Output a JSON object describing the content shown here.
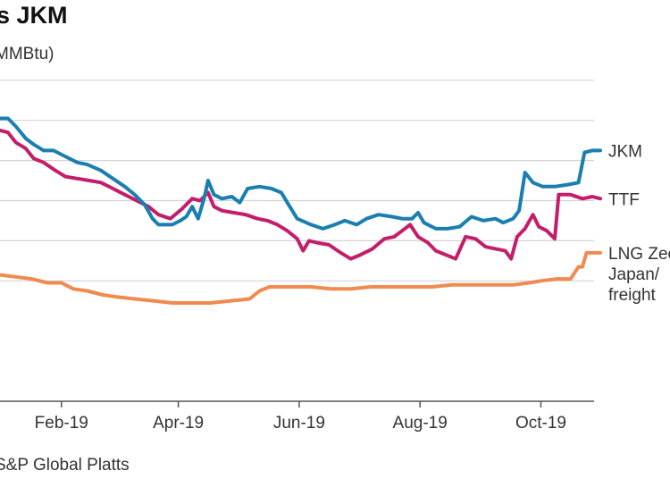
{
  "chart_data": {
    "type": "line",
    "title": "s JKM",
    "ylabel": "MMBtu)",
    "source": "S&P Global Platts",
    "x_start": "2019-01-01",
    "x_end": "2019-10-31",
    "x_ticks": [
      {
        "date": "2019-02-01",
        "label": "Feb-19"
      },
      {
        "date": "2019-04-01",
        "label": "Apr-19"
      },
      {
        "date": "2019-06-01",
        "label": "Jun-19"
      },
      {
        "date": "2019-08-01",
        "label": "Aug-19"
      },
      {
        "date": "2019-10-01",
        "label": "Oct-19"
      }
    ],
    "ylim": [
      0,
      10
    ],
    "grid_lines": [
      3,
      4,
      5,
      6,
      7,
      8
    ],
    "series": [
      {
        "name": "JKM",
        "legend": [
          "JKM"
        ],
        "color": "#1a7fb0",
        "points": [
          [
            "2019-01-01",
            7.05
          ],
          [
            "2019-01-05",
            7.05
          ],
          [
            "2019-01-09",
            6.85
          ],
          [
            "2019-01-14",
            6.55
          ],
          [
            "2019-01-18",
            6.4
          ],
          [
            "2019-01-23",
            6.25
          ],
          [
            "2019-01-28",
            6.25
          ],
          [
            "2019-02-03",
            6.1
          ],
          [
            "2019-02-09",
            5.95
          ],
          [
            "2019-02-14",
            5.9
          ],
          [
            "2019-02-21",
            5.75
          ],
          [
            "2019-02-27",
            5.55
          ],
          [
            "2019-03-05",
            5.35
          ],
          [
            "2019-03-10",
            5.15
          ],
          [
            "2019-03-15",
            4.9
          ],
          [
            "2019-03-19",
            4.55
          ],
          [
            "2019-03-22",
            4.4
          ],
          [
            "2019-03-29",
            4.4
          ],
          [
            "2019-04-02",
            4.5
          ],
          [
            "2019-04-05",
            4.6
          ],
          [
            "2019-04-08",
            4.85
          ],
          [
            "2019-04-11",
            4.55
          ],
          [
            "2019-04-14",
            5.05
          ],
          [
            "2019-04-16",
            5.5
          ],
          [
            "2019-04-19",
            5.15
          ],
          [
            "2019-04-23",
            5.05
          ],
          [
            "2019-04-28",
            5.1
          ],
          [
            "2019-05-02",
            4.95
          ],
          [
            "2019-05-06",
            5.3
          ],
          [
            "2019-05-12",
            5.35
          ],
          [
            "2019-05-18",
            5.3
          ],
          [
            "2019-05-23",
            5.2
          ],
          [
            "2019-05-26",
            4.95
          ],
          [
            "2019-05-31",
            4.55
          ],
          [
            "2019-06-07",
            4.4
          ],
          [
            "2019-06-13",
            4.3
          ],
          [
            "2019-06-19",
            4.4
          ],
          [
            "2019-06-24",
            4.5
          ],
          [
            "2019-06-30",
            4.4
          ],
          [
            "2019-07-05",
            4.55
          ],
          [
            "2019-07-11",
            4.65
          ],
          [
            "2019-07-18",
            4.6
          ],
          [
            "2019-07-23",
            4.55
          ],
          [
            "2019-07-28",
            4.55
          ],
          [
            "2019-07-31",
            4.7
          ],
          [
            "2019-08-03",
            4.45
          ],
          [
            "2019-08-09",
            4.3
          ],
          [
            "2019-08-15",
            4.3
          ],
          [
            "2019-08-21",
            4.35
          ],
          [
            "2019-08-27",
            4.6
          ],
          [
            "2019-09-02",
            4.5
          ],
          [
            "2019-09-08",
            4.55
          ],
          [
            "2019-09-12",
            4.45
          ],
          [
            "2019-09-17",
            4.55
          ],
          [
            "2019-09-20",
            4.75
          ],
          [
            "2019-09-23",
            5.7
          ],
          [
            "2019-09-27",
            5.45
          ],
          [
            "2019-10-02",
            5.35
          ],
          [
            "2019-10-08",
            5.35
          ],
          [
            "2019-10-15",
            5.4
          ],
          [
            "2019-10-20",
            5.45
          ],
          [
            "2019-10-23",
            6.2
          ],
          [
            "2019-10-27",
            6.25
          ],
          [
            "2019-10-31",
            6.25
          ]
        ]
      },
      {
        "name": "TTF",
        "legend": [
          "TTF"
        ],
        "color": "#c41e6a",
        "points": [
          [
            "2019-01-01",
            6.75
          ],
          [
            "2019-01-05",
            6.7
          ],
          [
            "2019-01-09",
            6.45
          ],
          [
            "2019-01-14",
            6.3
          ],
          [
            "2019-01-18",
            6.05
          ],
          [
            "2019-01-23",
            5.95
          ],
          [
            "2019-01-29",
            5.75
          ],
          [
            "2019-02-03",
            5.6
          ],
          [
            "2019-02-09",
            5.55
          ],
          [
            "2019-02-15",
            5.5
          ],
          [
            "2019-02-21",
            5.45
          ],
          [
            "2019-02-27",
            5.3
          ],
          [
            "2019-03-05",
            5.15
          ],
          [
            "2019-03-11",
            5.0
          ],
          [
            "2019-03-17",
            4.85
          ],
          [
            "2019-03-22",
            4.65
          ],
          [
            "2019-03-28",
            4.55
          ],
          [
            "2019-04-03",
            4.8
          ],
          [
            "2019-04-08",
            5.05
          ],
          [
            "2019-04-12",
            5.0
          ],
          [
            "2019-04-16",
            5.2
          ],
          [
            "2019-04-19",
            4.85
          ],
          [
            "2019-04-23",
            4.75
          ],
          [
            "2019-04-29",
            4.7
          ],
          [
            "2019-05-05",
            4.65
          ],
          [
            "2019-05-11",
            4.55
          ],
          [
            "2019-05-16",
            4.5
          ],
          [
            "2019-05-21",
            4.4
          ],
          [
            "2019-05-26",
            4.25
          ],
          [
            "2019-05-31",
            4.05
          ],
          [
            "2019-06-03",
            3.75
          ],
          [
            "2019-06-06",
            4.0
          ],
          [
            "2019-06-10",
            3.95
          ],
          [
            "2019-06-16",
            3.9
          ],
          [
            "2019-06-22",
            3.7
          ],
          [
            "2019-06-27",
            3.55
          ],
          [
            "2019-07-02",
            3.65
          ],
          [
            "2019-07-08",
            3.8
          ],
          [
            "2019-07-14",
            4.05
          ],
          [
            "2019-07-19",
            4.1
          ],
          [
            "2019-07-23",
            4.25
          ],
          [
            "2019-07-27",
            4.4
          ],
          [
            "2019-07-31",
            4.1
          ],
          [
            "2019-08-05",
            3.95
          ],
          [
            "2019-08-09",
            3.75
          ],
          [
            "2019-08-14",
            3.65
          ],
          [
            "2019-08-19",
            3.55
          ],
          [
            "2019-08-24",
            4.1
          ],
          [
            "2019-08-29",
            4.05
          ],
          [
            "2019-09-03",
            3.85
          ],
          [
            "2019-09-08",
            3.8
          ],
          [
            "2019-09-13",
            3.75
          ],
          [
            "2019-09-16",
            3.55
          ],
          [
            "2019-09-19",
            4.1
          ],
          [
            "2019-09-23",
            4.3
          ],
          [
            "2019-09-27",
            4.65
          ],
          [
            "2019-09-30",
            4.35
          ],
          [
            "2019-10-04",
            4.25
          ],
          [
            "2019-10-08",
            4.05
          ],
          [
            "2019-10-10",
            5.15
          ],
          [
            "2019-10-16",
            5.15
          ],
          [
            "2019-10-22",
            5.05
          ],
          [
            "2019-10-27",
            5.1
          ],
          [
            "2019-10-31",
            5.05
          ]
        ]
      },
      {
        "name": "LNG freight",
        "legend": [
          "LNG Zee",
          "Japan/",
          "freight"
        ],
        "color": "#f08a50",
        "points": [
          [
            "2019-01-01",
            3.15
          ],
          [
            "2019-01-09",
            3.1
          ],
          [
            "2019-01-17",
            3.05
          ],
          [
            "2019-01-25",
            2.95
          ],
          [
            "2019-02-01",
            2.95
          ],
          [
            "2019-02-07",
            2.8
          ],
          [
            "2019-02-14",
            2.75
          ],
          [
            "2019-02-22",
            2.65
          ],
          [
            "2019-03-01",
            2.6
          ],
          [
            "2019-03-10",
            2.55
          ],
          [
            "2019-03-20",
            2.5
          ],
          [
            "2019-03-29",
            2.45
          ],
          [
            "2019-04-07",
            2.45
          ],
          [
            "2019-04-17",
            2.45
          ],
          [
            "2019-04-27",
            2.5
          ],
          [
            "2019-05-07",
            2.55
          ],
          [
            "2019-05-12",
            2.75
          ],
          [
            "2019-05-17",
            2.85
          ],
          [
            "2019-05-27",
            2.85
          ],
          [
            "2019-06-07",
            2.85
          ],
          [
            "2019-06-17",
            2.8
          ],
          [
            "2019-06-27",
            2.8
          ],
          [
            "2019-07-07",
            2.85
          ],
          [
            "2019-07-17",
            2.85
          ],
          [
            "2019-07-27",
            2.85
          ],
          [
            "2019-08-07",
            2.85
          ],
          [
            "2019-08-17",
            2.9
          ],
          [
            "2019-08-27",
            2.9
          ],
          [
            "2019-09-07",
            2.9
          ],
          [
            "2019-09-17",
            2.9
          ],
          [
            "2019-09-25",
            2.95
          ],
          [
            "2019-10-01",
            3.0
          ],
          [
            "2019-10-09",
            3.05
          ],
          [
            "2019-10-16",
            3.05
          ],
          [
            "2019-10-20",
            3.35
          ],
          [
            "2019-10-22",
            3.35
          ],
          [
            "2019-10-24",
            3.7
          ],
          [
            "2019-10-31",
            3.7
          ]
        ]
      }
    ]
  }
}
